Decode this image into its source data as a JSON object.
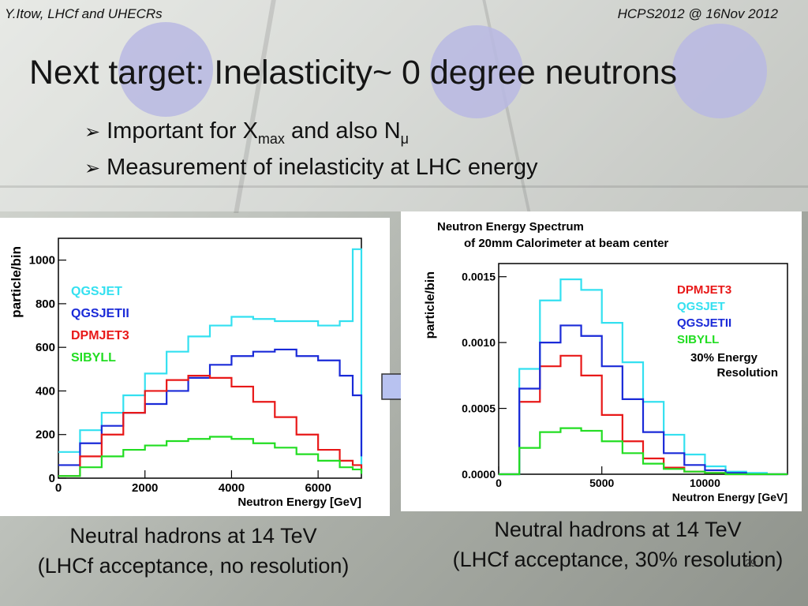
{
  "header": {
    "left": "Y.Itow,  LHCf and UHECRs",
    "right": "HCPS2012 @ 16Nov 2012"
  },
  "title": "Next target: Inelasticity~ 0 degree neutrons",
  "bullets": [
    {
      "pre": "Important for X",
      "sub1": "max",
      "mid": " and also N",
      "sub2": "μ"
    },
    {
      "text": "Measurement of inelasticity at LHC energy"
    }
  ],
  "captions": {
    "left_line1": "Neutral hadrons at 14 TeV",
    "left_line2": "(LHCf acceptance, no resolution)",
    "right_line1": "Neutral hadrons at 14 TeV",
    "right_line2": "(LHCf acceptance, 30% resolution)"
  },
  "slide_number": "29",
  "colors": {
    "qgsjet": "#33e0f0",
    "qgsjetii": "#1a2ad8",
    "dpmjet3": "#e81818",
    "sibyll": "#22dd22",
    "arrow_fill": "#b8c2f0",
    "accent_circle": "#b9b9e3"
  },
  "chart_data": [
    {
      "type": "line",
      "xlabel": "Neutron Energy [GeV]",
      "ylabel": "particle/bin",
      "xlim": [
        0,
        7000
      ],
      "ylim": [
        0,
        1100
      ],
      "xticks": [
        "0",
        "2000",
        "4000",
        "6000"
      ],
      "yticks": [
        "0",
        "200",
        "400",
        "600",
        "800",
        "1000"
      ],
      "x": [
        0,
        500,
        1000,
        1500,
        2000,
        2500,
        3000,
        3500,
        4000,
        4500,
        5000,
        5500,
        6000,
        6500,
        6800,
        7000
      ],
      "series": [
        {
          "name": "QGSJET",
          "values": [
            120,
            220,
            300,
            380,
            480,
            580,
            650,
            700,
            740,
            730,
            720,
            720,
            700,
            720,
            1050,
            20
          ]
        },
        {
          "name": "QGSJETII",
          "values": [
            60,
            160,
            240,
            300,
            340,
            400,
            460,
            520,
            560,
            580,
            590,
            560,
            540,
            470,
            380,
            100
          ]
        },
        {
          "name": "DPMJET3",
          "values": [
            10,
            100,
            200,
            300,
            400,
            450,
            470,
            460,
            420,
            350,
            280,
            200,
            130,
            80,
            60,
            30
          ]
        },
        {
          "name": "SIBYLL",
          "values": [
            10,
            50,
            100,
            130,
            150,
            170,
            180,
            190,
            180,
            160,
            140,
            110,
            80,
            50,
            40,
            20
          ]
        }
      ]
    },
    {
      "type": "line",
      "title": "Neutron Energy Spectrum",
      "subtitle": "of 20mm Calorimeter at beam center",
      "xlabel": "Neutron Energy [GeV]",
      "ylabel": "particle/bin",
      "xlim": [
        0,
        14000
      ],
      "ylim": [
        0,
        0.0016
      ],
      "xticks": [
        "0",
        "5000",
        "10000"
      ],
      "yticks": [
        "0.0000",
        "0.0005",
        "0.0010",
        "0.0015"
      ],
      "annotation": [
        "30% Energy",
        "Resolution"
      ],
      "x": [
        0,
        1000,
        2000,
        3000,
        4000,
        5000,
        6000,
        7000,
        8000,
        9000,
        10000,
        11000,
        12000,
        13000
      ],
      "series": [
        {
          "name": "DPMJET3",
          "values": [
            0.0,
            0.00055,
            0.00082,
            0.0009,
            0.00075,
            0.00045,
            0.00025,
            0.00012,
            5e-05,
            2e-05,
            1e-05,
            0.0,
            0.0,
            0.0
          ]
        },
        {
          "name": "QGSJET",
          "values": [
            0.0,
            0.0008,
            0.00132,
            0.00148,
            0.0014,
            0.00115,
            0.00085,
            0.00055,
            0.0003,
            0.00015,
            6e-05,
            2e-05,
            1e-05,
            0.0
          ]
        },
        {
          "name": "QGSJETII",
          "values": [
            0.0,
            0.00065,
            0.001,
            0.00113,
            0.00105,
            0.00082,
            0.00057,
            0.00032,
            0.00016,
            7e-05,
            3e-05,
            1e-05,
            0.0,
            0.0
          ]
        },
        {
          "name": "SIBYLL",
          "values": [
            0.0,
            0.0002,
            0.00032,
            0.00035,
            0.00033,
            0.00025,
            0.00016,
            8e-05,
            4e-05,
            2e-05,
            1e-05,
            0.0,
            0.0,
            0.0
          ]
        }
      ]
    }
  ]
}
